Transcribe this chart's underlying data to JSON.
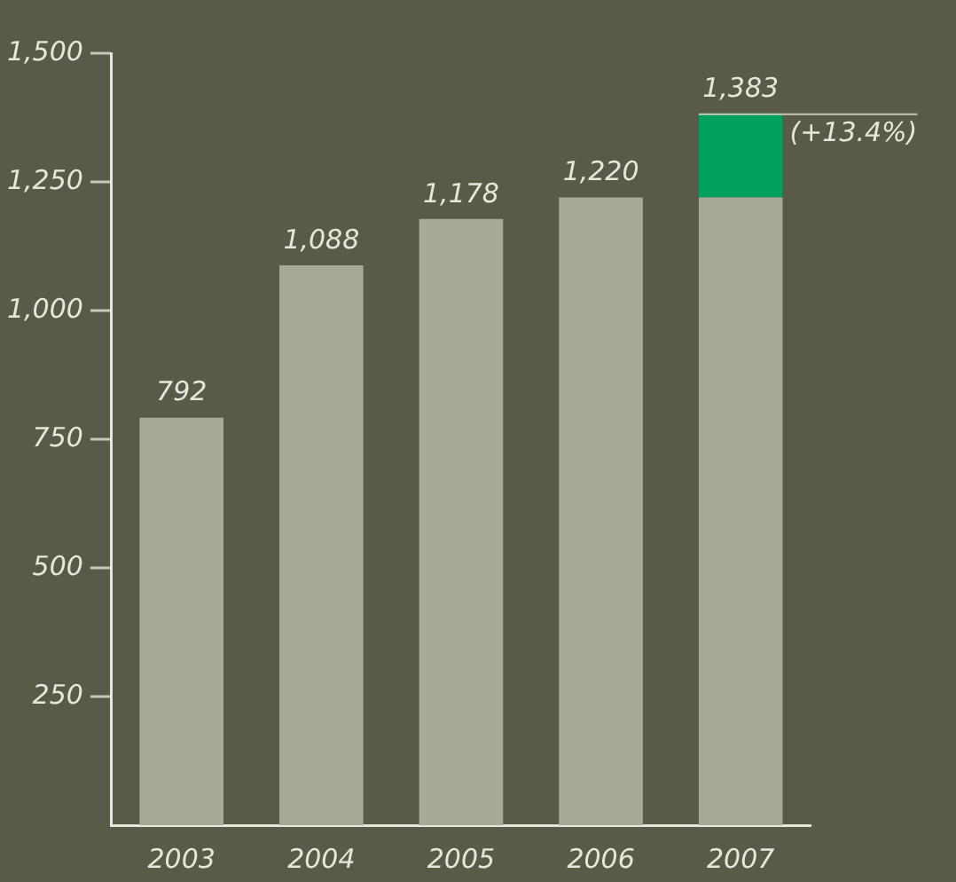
{
  "chart_data": {
    "type": "bar",
    "stacked": true,
    "categories": [
      "2003",
      "2004",
      "2005",
      "2006",
      "2007"
    ],
    "series": [
      {
        "color": "#a9a997",
        "values": [
          792,
          1088,
          1178,
          1220,
          1220
        ]
      },
      {
        "color": "#00a05e",
        "values": [
          null,
          null,
          null,
          null,
          163
        ]
      }
    ],
    "totals": [
      "792",
      "1,088",
      "1,178",
      "1,220",
      "1,383"
    ],
    "annotations": [
      {
        "text": "(+13.4%)",
        "x": "2007",
        "y": 1383
      }
    ],
    "ylim": [
      0,
      1500
    ],
    "yticks": [
      250,
      500,
      750,
      {
        "value": 1000,
        "label": "1,000"
      },
      {
        "value": 1250,
        "label": "1,250"
      },
      {
        "value": 1500,
        "label": "1,500"
      }
    ],
    "grid": false,
    "legend": false
  }
}
